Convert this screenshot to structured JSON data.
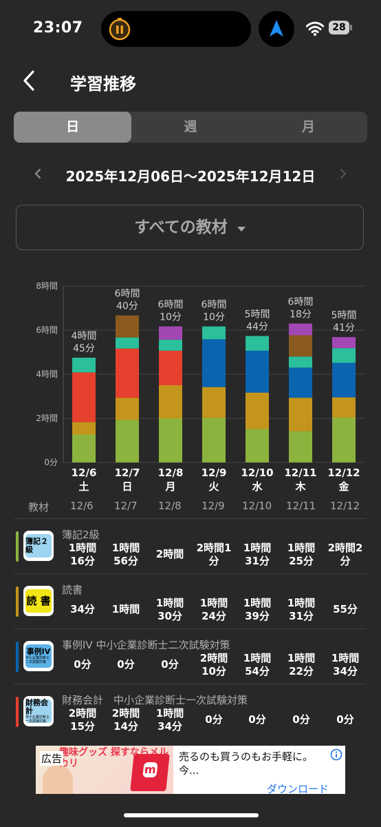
{
  "status": {
    "time": "23:07",
    "battery": "28"
  },
  "header": {
    "title": "学習推移"
  },
  "segments": [
    {
      "label": "日",
      "active": true
    },
    {
      "label": "週",
      "active": false
    },
    {
      "label": "月",
      "active": false
    }
  ],
  "date_range": "2025年12月06日〜2025年12月12日",
  "filter": {
    "label": "すべての教材"
  },
  "colors": {
    "green": "#8db33f",
    "orange": "#c4951c",
    "red": "#e6402e",
    "blue": "#0a64b0",
    "teal": "#2bbf9b",
    "purple": "#a347b4",
    "brown": "#8b5a1e"
  },
  "chart_data": {
    "type": "bar",
    "stacked": true,
    "y_unit": "minutes",
    "ylim": [
      0,
      480
    ],
    "y_ticks": [
      {
        "value": 0,
        "label": "0分"
      },
      {
        "value": 120,
        "label": "2時間"
      },
      {
        "value": 240,
        "label": "4時間"
      },
      {
        "value": 360,
        "label": "6時間"
      },
      {
        "value": 480,
        "label": "8時間"
      }
    ],
    "grid": true,
    "categories": [
      {
        "date": "12/6",
        "weekday": "土"
      },
      {
        "date": "12/7",
        "weekday": "日"
      },
      {
        "date": "12/8",
        "weekday": "月"
      },
      {
        "date": "12/9",
        "weekday": "火"
      },
      {
        "date": "12/10",
        "weekday": "水"
      },
      {
        "date": "12/11",
        "weekday": "木"
      },
      {
        "date": "12/12",
        "weekday": "金"
      }
    ],
    "totals": [
      [
        "4時間",
        "45分"
      ],
      [
        "6時間",
        "40分"
      ],
      [
        "6時間",
        "10分"
      ],
      [
        "6時間",
        "10分"
      ],
      [
        "5時間",
        "44分"
      ],
      [
        "6時間",
        "18分"
      ],
      [
        "5時間",
        "41分"
      ]
    ],
    "series": [
      {
        "color": "#8db33f",
        "values": [
          76,
          116,
          120,
          121,
          91,
          85,
          122
        ]
      },
      {
        "color": "#c4951c",
        "values": [
          34,
          60,
          90,
          84,
          99,
          91,
          55
        ]
      },
      {
        "color": "#e6402e",
        "values": [
          135,
          134,
          94,
          0,
          0,
          0,
          0
        ]
      },
      {
        "color": "#0a64b0",
        "values": [
          0,
          0,
          0,
          130,
          114,
          82,
          94
        ]
      },
      {
        "color": "#2bbf9b",
        "values": [
          40,
          30,
          30,
          35,
          40,
          30,
          40
        ]
      },
      {
        "color": "#8b5a1e",
        "values": [
          0,
          60,
          0,
          0,
          0,
          58,
          0
        ]
      },
      {
        "color": "#a347b4",
        "values": [
          0,
          0,
          36,
          0,
          0,
          32,
          30
        ]
      }
    ]
  },
  "table": {
    "header": {
      "label": "教材",
      "dates": [
        "12/6",
        "12/7",
        "12/8",
        "12/9",
        "12/10",
        "12/11",
        "12/12"
      ]
    },
    "rows": [
      {
        "name": "簿記2級",
        "icon_text": "簿記２級",
        "icon_sub": "",
        "color": "#8db33f",
        "icon_bg": "#9ed4f0",
        "icon_fg": "#000000",
        "cells": [
          [
            "1時間",
            "16分"
          ],
          [
            "1時間",
            "56分"
          ],
          [
            "2時間"
          ],
          [
            "2時間1",
            "分"
          ],
          [
            "1時間",
            "31分"
          ],
          [
            "1時間",
            "25分"
          ],
          [
            "2時間2",
            "分"
          ]
        ]
      },
      {
        "name": "読書",
        "icon_text": "読 書",
        "icon_sub": "",
        "color": "#c4951c",
        "icon_bg": "#f2e616",
        "icon_fg": "#000000",
        "cells": [
          [
            "34分"
          ],
          [
            "1時間"
          ],
          [
            "1時間",
            "30分"
          ],
          [
            "1時間",
            "24分"
          ],
          [
            "1時間",
            "39分"
          ],
          [
            "1時間",
            "31分"
          ],
          [
            "55分"
          ]
        ]
      },
      {
        "name": "事例IV 中小企業診断士二次試験対策",
        "icon_text": "事例IV",
        "icon_sub": "中小企業診断士 二次試験対策",
        "color": "#0a64b0",
        "icon_bg": "#5bb2e8",
        "icon_fg": "#000000",
        "cells": [
          [
            "0分"
          ],
          [
            "0分"
          ],
          [
            "0分"
          ],
          [
            "2時間",
            "10分"
          ],
          [
            "1時間",
            "54分"
          ],
          [
            "1時間",
            "22分"
          ],
          [
            "1時間",
            "34分"
          ]
        ]
      },
      {
        "name": "財務会計　中小企業診断士一次試験対策",
        "icon_text": "財務会計",
        "icon_sub": "中小企業診断士 一次試験対策",
        "color": "#e6402e",
        "icon_bg": "#9ed4f0",
        "icon_fg": "#000000",
        "cells": [
          [
            "2時間",
            "15分"
          ],
          [
            "2時間",
            "14分"
          ],
          [
            "1時間",
            "34分"
          ],
          [
            "0分"
          ],
          [
            "0分"
          ],
          [
            "0分"
          ],
          [
            "0分"
          ]
        ]
      }
    ]
  },
  "ad": {
    "label": "広告",
    "headline": "趣味グッズ 探すならメルカリ",
    "text_line1": "売るのも買うのもお手軽に。",
    "text_line2": "今...",
    "cta": "ダウンロード"
  }
}
